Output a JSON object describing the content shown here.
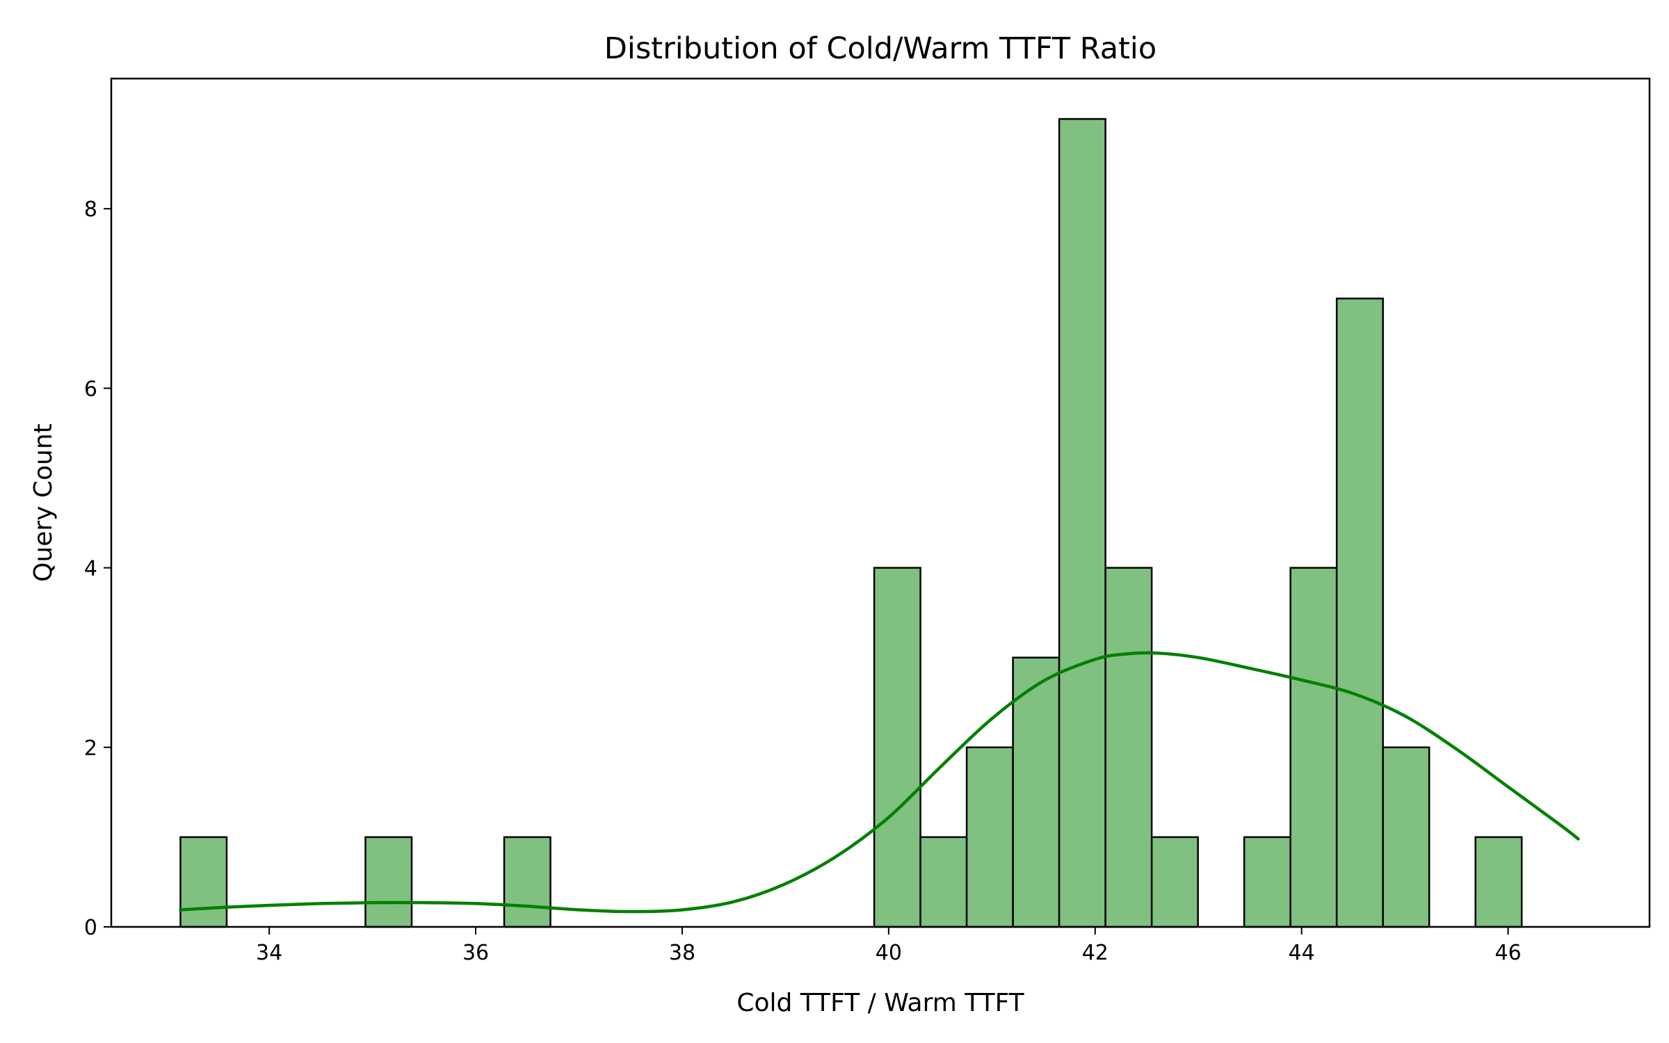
{
  "chart_data": {
    "type": "bar",
    "title": "Distribution of Cold/Warm TTFT Ratio",
    "xlabel": "Cold TTFT / Warm TTFT",
    "ylabel": "Query Count",
    "xlim": [
      32.47,
      47.37
    ],
    "ylim": [
      0,
      9.45
    ],
    "xticks": [
      34,
      36,
      38,
      40,
      42,
      44,
      46
    ],
    "yticks": [
      0,
      2,
      4,
      6,
      8
    ],
    "grid": false,
    "legend": "none",
    "bar_color": "#80c080",
    "bar_edge_color": "#000000",
    "kde_color": "#008000",
    "bin_start": 33.14,
    "bin_width": 0.448,
    "counts": [
      1,
      0,
      0,
      0,
      1,
      0,
      0,
      1,
      0,
      0,
      0,
      0,
      0,
      0,
      0,
      4,
      1,
      2,
      3,
      9,
      4,
      1,
      0,
      1,
      4,
      7,
      2,
      0,
      1
    ],
    "kde": {
      "x": [
        33.14,
        33.6,
        34.0,
        34.5,
        35.0,
        35.5,
        36.0,
        36.5,
        37.0,
        37.5,
        38.0,
        38.5,
        39.0,
        39.5,
        40.0,
        40.5,
        41.0,
        41.5,
        42.0,
        42.3,
        42.6,
        43.0,
        43.5,
        44.0,
        44.5,
        45.0,
        45.5,
        46.0,
        46.5,
        46.68
      ],
      "y": [
        0.19,
        0.22,
        0.24,
        0.26,
        0.27,
        0.27,
        0.26,
        0.23,
        0.19,
        0.17,
        0.19,
        0.28,
        0.48,
        0.79,
        1.22,
        1.78,
        2.32,
        2.74,
        2.98,
        3.04,
        3.05,
        3.0,
        2.88,
        2.75,
        2.6,
        2.35,
        1.98,
        1.56,
        1.14,
        0.98
      ]
    }
  }
}
